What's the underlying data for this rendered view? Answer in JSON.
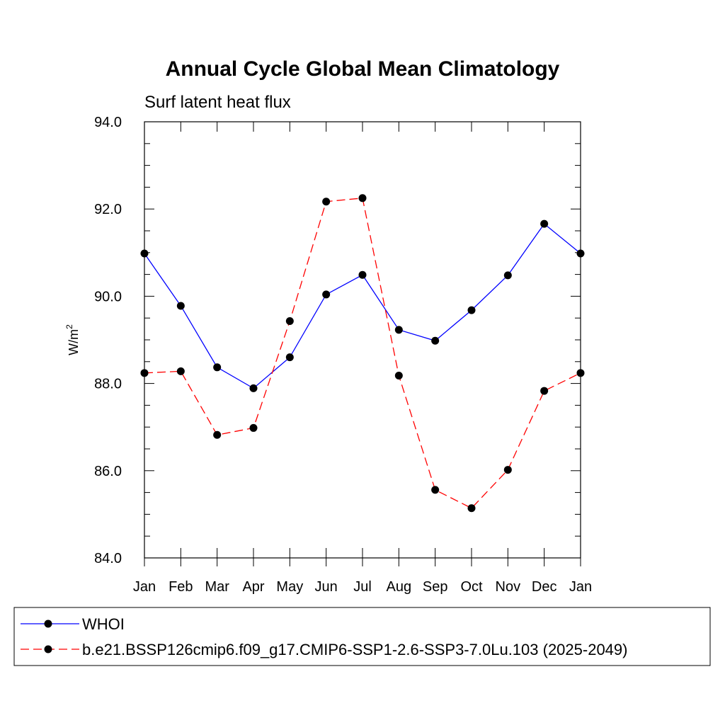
{
  "chart_data": {
    "type": "line",
    "title": "Annual Cycle Global Mean Climatology",
    "subtitle": "Surf latent heat flux",
    "ylabel": "W/m",
    "ylabel_superscript": "2",
    "xlabel": "",
    "categories": [
      "Jan",
      "Feb",
      "Mar",
      "Apr",
      "May",
      "Jun",
      "Jul",
      "Aug",
      "Sep",
      "Oct",
      "Nov",
      "Dec",
      "Jan"
    ],
    "ylim": [
      84.0,
      94.0
    ],
    "yticks": [
      "84.0",
      "86.0",
      "88.0",
      "90.0",
      "92.0",
      "94.0"
    ],
    "grid": false,
    "legend_position": "bottom",
    "series": [
      {
        "name": "WHOI",
        "color": "#0000ff",
        "line_style": "solid",
        "marker": "circle",
        "values": [
          90.98,
          89.78,
          88.37,
          87.89,
          88.6,
          90.04,
          90.49,
          89.23,
          88.98,
          89.68,
          90.48,
          91.66,
          90.98
        ]
      },
      {
        "name": "b.e21.BSSP126cmip6.f09_g17.CMIP6-SSP1-2.6-SSP3-7.0Lu.103 (2025-2049)",
        "color": "#ff0000",
        "line_style": "dashed",
        "marker": "circle",
        "values": [
          88.24,
          88.28,
          86.82,
          86.98,
          89.43,
          92.17,
          92.25,
          88.18,
          85.56,
          85.14,
          86.02,
          87.83,
          88.24
        ]
      }
    ]
  }
}
